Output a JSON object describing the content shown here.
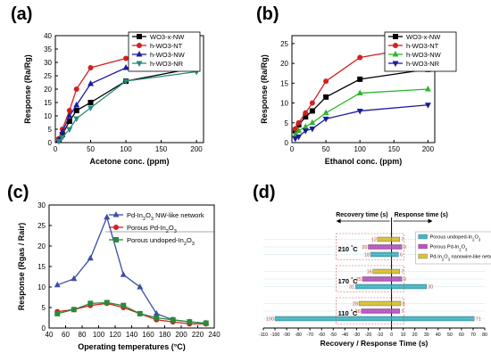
{
  "panels": {
    "a": "(a)",
    "b": "(b)",
    "c": "(c)",
    "d": "(d)"
  },
  "chart_data": [
    {
      "id": "a",
      "type": "line",
      "xlabel": "Acetone conc. (ppm)",
      "ylabel": "Response (Ra/Rg)",
      "xlim": [
        0,
        210
      ],
      "ylim": [
        0,
        40
      ],
      "xticks": [
        0,
        50,
        100,
        150,
        200
      ],
      "yticks": [
        0,
        5,
        10,
        15,
        20,
        25,
        30,
        35,
        40
      ],
      "legend": "top-right",
      "x": [
        5,
        10,
        20,
        30,
        50,
        100,
        200
      ],
      "series": [
        {
          "name": "WO3-x-NW",
          "color": "#000000",
          "marker": "square",
          "values": [
            1,
            3,
            8,
            12,
            15,
            23,
            28
          ]
        },
        {
          "name": "h-WO3-NT",
          "color": "#d42020",
          "marker": "circle",
          "values": [
            1.5,
            5,
            12,
            20,
            28,
            31.5,
            32
          ]
        },
        {
          "name": "h-WO3-NW",
          "color": "#1a1aa0",
          "marker": "triangle-up",
          "values": [
            1,
            4,
            10,
            14,
            22,
            28,
            28
          ]
        },
        {
          "name": "h-WO3-NR",
          "color": "#2a8a7a",
          "marker": "triangle-down",
          "values": [
            0.5,
            2,
            5,
            9,
            13,
            23,
            26.5
          ]
        }
      ]
    },
    {
      "id": "b",
      "type": "line",
      "xlabel": "Ethanol conc. (ppm)",
      "ylabel": "Response (Ra/Rg)",
      "xlim": [
        0,
        210
      ],
      "ylim": [
        0,
        27
      ],
      "xticks": [
        0,
        50,
        100,
        150,
        200
      ],
      "yticks": [
        0,
        5,
        10,
        15,
        20,
        25
      ],
      "legend": "top-right",
      "x": [
        5,
        10,
        20,
        30,
        50,
        100,
        200
      ],
      "series": [
        {
          "name": "WO3-x-NW",
          "color": "#000000",
          "marker": "square",
          "values": [
            3,
            4.5,
            6.5,
            8,
            11.5,
            16,
            18.5
          ]
        },
        {
          "name": "h-WO3-NT",
          "color": "#d42020",
          "marker": "circle",
          "values": [
            3.5,
            5,
            7.5,
            10,
            15.5,
            21.5,
            24.5
          ]
        },
        {
          "name": "h-WO3-NW",
          "color": "#2db82d",
          "marker": "triangle-up",
          "values": [
            2,
            3,
            4,
            5,
            7.5,
            12.5,
            13.5
          ]
        },
        {
          "name": "h-WO3-NR",
          "color": "#1a1aa0",
          "marker": "triangle-down",
          "values": [
            1,
            1.5,
            3,
            3.5,
            6,
            8,
            9.5
          ]
        }
      ]
    },
    {
      "id": "c",
      "type": "line",
      "xlabel": "Operating temperatures (°C)",
      "ylabel": "Response (Rgas / Rair)",
      "xlim": [
        40,
        240
      ],
      "ylim": [
        0,
        30
      ],
      "xticks": [
        40,
        60,
        80,
        100,
        120,
        140,
        160,
        180,
        200,
        220,
        240
      ],
      "yticks": [
        0,
        5,
        10,
        15,
        20,
        25,
        30
      ],
      "legend": "top-right",
      "x": [
        50,
        70,
        90,
        110,
        130,
        150,
        170,
        190,
        210,
        230
      ],
      "series": [
        {
          "name": "Pd-In2O3 NW-like network",
          "color": "#3a4fa8",
          "marker": "triangle-up",
          "values": [
            10.5,
            12,
            17,
            27,
            13,
            10,
            3.5,
            2,
            1.5,
            1.2
          ]
        },
        {
          "name": "Porous Pd-In2O3",
          "color": "#d42020",
          "marker": "circle",
          "values": [
            4,
            4.5,
            5.5,
            6,
            5,
            3.5,
            2,
            1.5,
            1,
            1
          ]
        },
        {
          "name": "Porous undoped-In2O3",
          "color": "#2a8a3a",
          "marker": "square",
          "values": [
            3.5,
            4.5,
            6,
            6.2,
            5.5,
            3.5,
            2.5,
            2,
            1.5,
            1.2
          ]
        }
      ]
    },
    {
      "id": "d",
      "type": "bar",
      "xlabel": "Recovery / Response Time (s)",
      "xlim": [
        -110,
        80
      ],
      "xticks": [
        -110,
        -100,
        -90,
        -80,
        -70,
        -60,
        -50,
        -40,
        -30,
        -20,
        -10,
        0,
        10,
        20,
        30,
        40,
        50,
        60,
        70,
        80
      ],
      "recovery_label": "Recovery time (s)",
      "response_label": "Response time (s)",
      "legend": "top-right",
      "series_names": [
        "Porous undoped-In2O3",
        "Porous Pd-In2O3",
        "Pd-In2O3 nanowire-like network"
      ],
      "series_colors": [
        "#3fb8c8",
        "#c050c0",
        "#d8c23a"
      ],
      "groups": [
        {
          "temperature": "210 °C",
          "recovery": [
            18,
            20,
            12
          ],
          "response": [
            6,
            9,
            7
          ]
        },
        {
          "temperature": "170 °C",
          "recovery": [
            31,
            25,
            16
          ],
          "response": [
            30,
            9,
            7
          ]
        },
        {
          "temperature": "110 °C",
          "recovery": [
            100,
            26,
            28
          ],
          "response": [
            71,
            7,
            8
          ]
        }
      ]
    }
  ]
}
